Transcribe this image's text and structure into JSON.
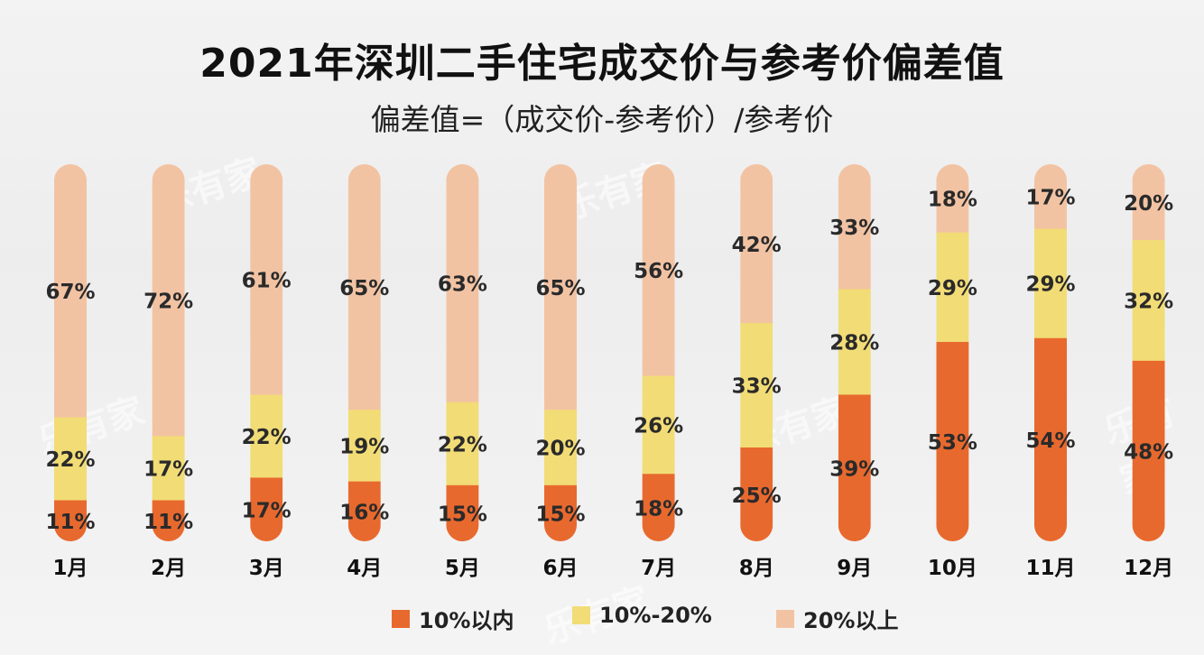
{
  "title": "2021年深圳二手住宅成交价与参考价偏差值",
  "subtitle": "偏差值=（成交价-参考价）/参考价",
  "watermark_text": "乐有家",
  "chart_data": {
    "type": "bar",
    "stacked": true,
    "orientation": "vertical",
    "categories": [
      "1月",
      "2月",
      "3月",
      "4月",
      "5月",
      "6月",
      "7月",
      "8月",
      "9月",
      "10月",
      "11月",
      "12月"
    ],
    "series": [
      {
        "name": "10%以内",
        "color": "#e8692e",
        "values": [
          11,
          11,
          17,
          16,
          15,
          15,
          18,
          25,
          39,
          53,
          54,
          48
        ]
      },
      {
        "name": "10%-20%",
        "color": "#f2dc76",
        "values": [
          22,
          17,
          22,
          19,
          22,
          20,
          26,
          33,
          28,
          29,
          29,
          32
        ]
      },
      {
        "name": "20%以上",
        "color": "#f2c3a3",
        "values": [
          67,
          72,
          61,
          65,
          63,
          65,
          56,
          42,
          33,
          18,
          17,
          20
        ]
      }
    ],
    "ylim": [
      0,
      100
    ],
    "value_suffix": "%",
    "legend": "bottom"
  },
  "legend": {
    "items": [
      {
        "label": "10%以内",
        "color": "#e8692e"
      },
      {
        "label": "10%-20%",
        "color": "#f2dc76"
      },
      {
        "label": "20%以上",
        "color": "#f2c3a3"
      }
    ]
  }
}
